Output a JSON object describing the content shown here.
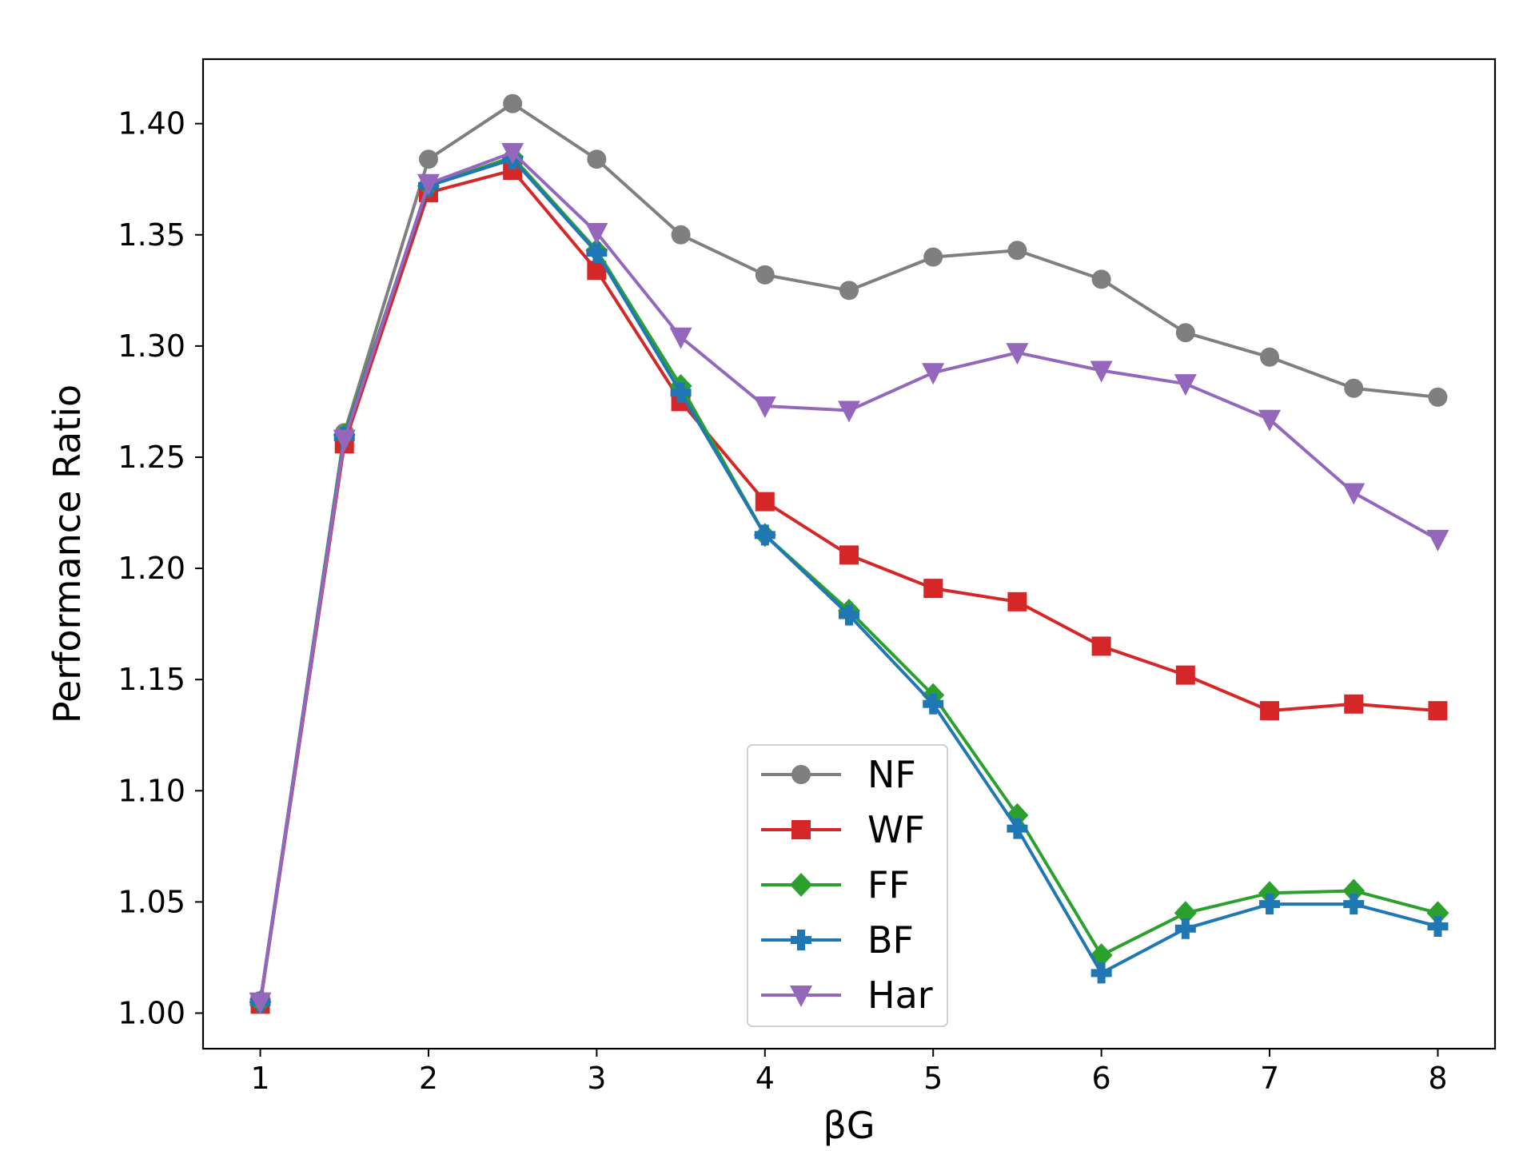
{
  "chart_data": {
    "type": "line",
    "title": "",
    "xlabel": "βG",
    "ylabel": "Performance Ratio",
    "xlim": [
      0.66,
      8.34
    ],
    "ylim": [
      0.984,
      1.429
    ],
    "xticks": [
      1,
      2,
      3,
      4,
      5,
      6,
      7,
      8
    ],
    "xtick_labels": [
      "1",
      "2",
      "3",
      "4",
      "5",
      "6",
      "7",
      "8"
    ],
    "yticks": [
      1.0,
      1.05,
      1.1,
      1.15,
      1.2,
      1.25,
      1.3,
      1.35,
      1.4
    ],
    "ytick_labels": [
      "1.00",
      "1.05",
      "1.10",
      "1.15",
      "1.20",
      "1.25",
      "1.30",
      "1.35",
      "1.40"
    ],
    "grid": false,
    "legend_position": "lower-center",
    "x": [
      1,
      1.5,
      2,
      2.5,
      3,
      3.5,
      4,
      4.5,
      5,
      5.5,
      6,
      6.5,
      7,
      7.5,
      8
    ],
    "series": [
      {
        "name": "NF",
        "color": "#7f7f7f",
        "marker": "circle",
        "values": [
          1.005,
          1.261,
          1.384,
          1.409,
          1.384,
          1.35,
          1.332,
          1.325,
          1.34,
          1.343,
          1.33,
          1.306,
          1.295,
          1.281,
          1.277
        ]
      },
      {
        "name": "WF",
        "color": "#d62728",
        "marker": "square",
        "values": [
          1.004,
          1.256,
          1.369,
          1.379,
          1.334,
          1.275,
          1.23,
          1.206,
          1.191,
          1.185,
          1.165,
          1.152,
          1.136,
          1.139,
          1.136
        ]
      },
      {
        "name": "FF",
        "color": "#2ca02c",
        "marker": "diamond",
        "values": [
          1.005,
          1.26,
          1.372,
          1.385,
          1.343,
          1.282,
          1.215,
          1.181,
          1.143,
          1.089,
          1.026,
          1.045,
          1.054,
          1.055,
          1.045
        ]
      },
      {
        "name": "BF",
        "color": "#1f77b4",
        "marker": "plus",
        "values": [
          1.005,
          1.259,
          1.372,
          1.384,
          1.342,
          1.279,
          1.215,
          1.179,
          1.139,
          1.083,
          1.018,
          1.038,
          1.049,
          1.049,
          1.039
        ]
      },
      {
        "name": "Har",
        "color": "#9467bd",
        "marker": "triangle-down",
        "values": [
          1.005,
          1.258,
          1.373,
          1.387,
          1.351,
          1.304,
          1.273,
          1.271,
          1.288,
          1.297,
          1.289,
          1.283,
          1.267,
          1.234,
          1.213
        ]
      }
    ]
  }
}
